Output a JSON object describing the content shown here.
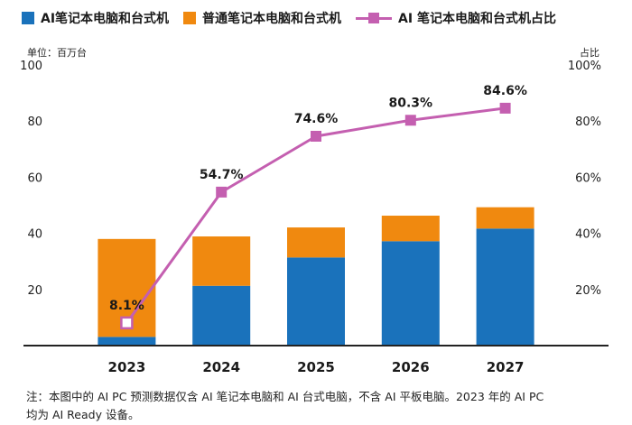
{
  "legend": {
    "ai_label": "AI笔记本电脑和台式机",
    "regular_label": "普通笔记本电脑和台式机",
    "share_label": "AI 笔记本电脑和台式机占比"
  },
  "left_unit": "单位：百万台",
  "right_unit": "占比",
  "footnote": {
    "line1": "注：本图中的 AI PC 预测数据仅含 AI 笔记本电脑和 AI 台式电脑，不含 AI 平板电脑。2023 年的 AI PC",
    "line2": "均为 AI Ready 设备。"
  },
  "colors": {
    "ai": "#1a72bb",
    "regular": "#f0890f",
    "share": "#c45fb0",
    "axis": "#222222"
  },
  "chart_data": {
    "type": "bar",
    "stacked": true,
    "categories": [
      "2023",
      "2024",
      "2025",
      "2026",
      "2027"
    ],
    "series": [
      {
        "name": "AI笔记本电脑和台式机",
        "values": [
          3.1,
          21.3,
          31.4,
          37.2,
          41.7
        ]
      },
      {
        "name": "普通笔记本电脑和台式机",
        "values": [
          34.9,
          17.6,
          10.7,
          9.1,
          7.6
        ]
      }
    ],
    "line_series": {
      "name": "AI 笔记本电脑和台式机占比",
      "values": [
        8.1,
        54.7,
        74.6,
        80.3,
        84.6
      ],
      "labels": [
        "8.1%",
        "54.7%",
        "74.6%",
        "80.3%",
        "84.6%"
      ]
    },
    "ylim": [
      0,
      100
    ],
    "yticks": [
      "20",
      "40",
      "60",
      "80",
      "100"
    ],
    "y2lim": [
      0,
      100
    ],
    "y2ticks": [
      "20%",
      "40%",
      "60%",
      "80%",
      "100%"
    ],
    "ylabel": "单位：百万台",
    "y2label": "占比",
    "legend_position": "top",
    "grid": false
  }
}
